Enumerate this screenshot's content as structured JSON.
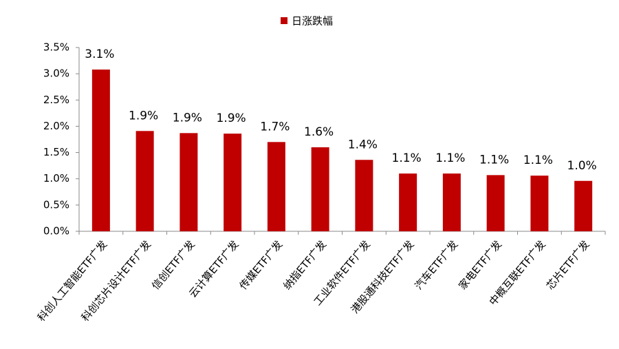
{
  "chart_data": {
    "type": "bar",
    "categories": [
      "科创人工智能ETF广发",
      "科创芯片设计ETF广发",
      "信创ETF广发",
      "云计算ETF广发",
      "传媒ETF广发",
      "纳指ETF广发",
      "工业软件ETF广发",
      "港股通科技ETF广发",
      "汽车ETF广发",
      "家电ETF广发",
      "中概互联ETF广发",
      "芯片ETF广发"
    ],
    "series": [
      {
        "name": "日涨跌幅",
        "color": "#c00000",
        "values": [
          3.08,
          1.91,
          1.87,
          1.86,
          1.7,
          1.6,
          1.36,
          1.1,
          1.1,
          1.07,
          1.06,
          0.96
        ],
        "value_labels": [
          "3.1%",
          "1.9%",
          "1.9%",
          "1.9%",
          "1.7%",
          "1.6%",
          "1.4%",
          "1.1%",
          "1.1%",
          "1.1%",
          "1.1%",
          "1.0%"
        ]
      }
    ],
    "ylim": [
      0,
      3.5
    ],
    "yticks": [
      {
        "value": 0,
        "label": "0.0%"
      },
      {
        "value": 0.5,
        "label": "0.5%"
      },
      {
        "value": 1,
        "label": "1.0%"
      },
      {
        "value": 1.5,
        "label": "1.5%"
      },
      {
        "value": 2,
        "label": "2.0%"
      },
      {
        "value": 2.5,
        "label": "2.5%"
      },
      {
        "value": 3,
        "label": "3.0%"
      },
      {
        "value": 3.5,
        "label": "3.5%"
      }
    ],
    "grid": false,
    "legend": "top"
  }
}
